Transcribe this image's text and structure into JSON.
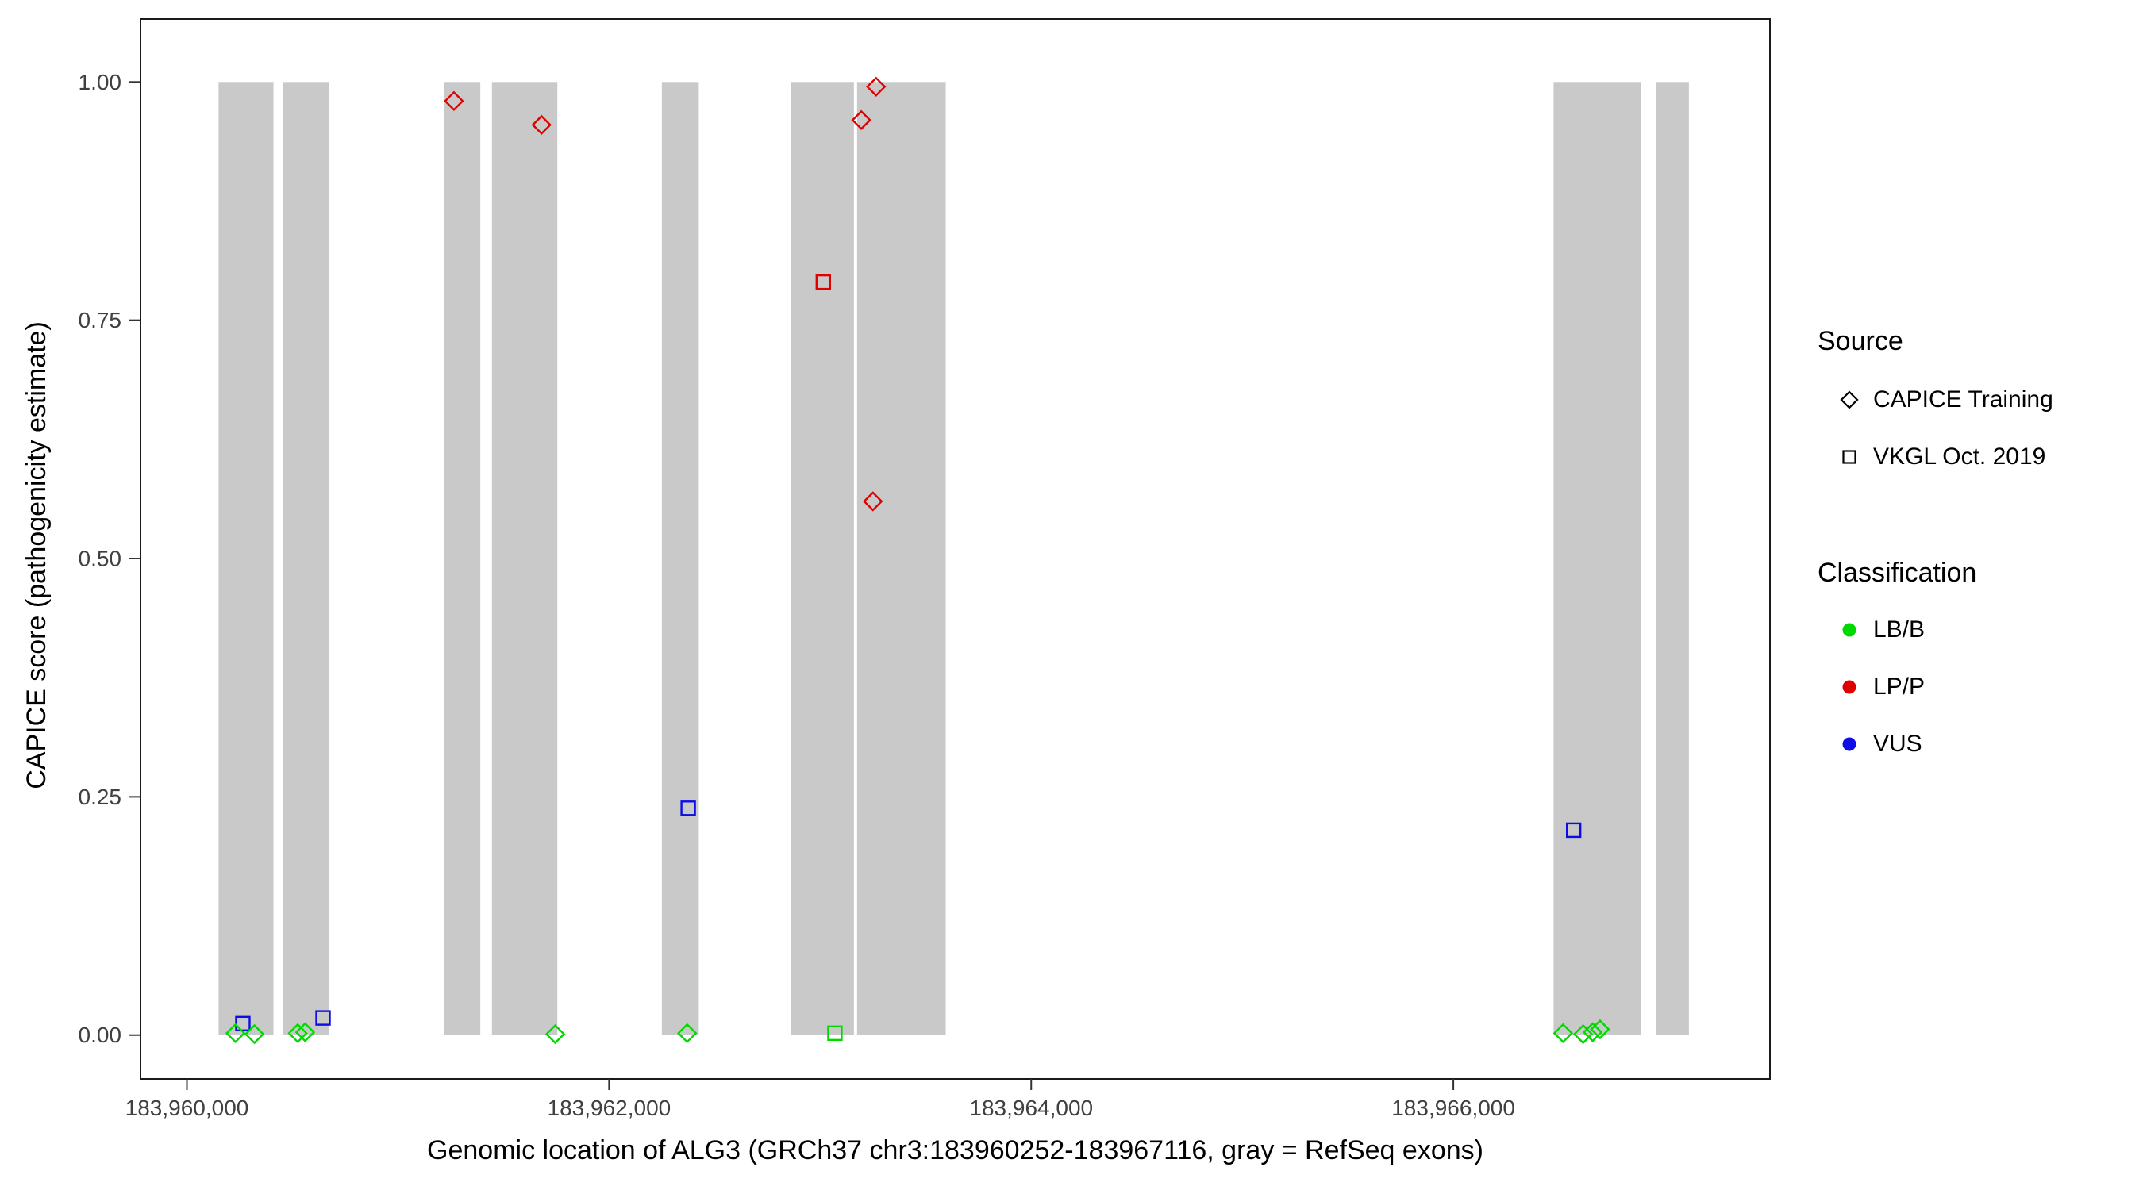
{
  "chart_data": {
    "type": "scatter",
    "title": "",
    "xlabel": "Genomic location of ALG3 (GRCh37 chr3:183960252-183967116, gray = RefSeq exons)",
    "ylabel": "CAPICE score (pathogenicity estimate)",
    "xlim": [
      183959780,
      183967500
    ],
    "ylim": [
      -0.046,
      1.066
    ],
    "grid": "off",
    "legend_position": "right",
    "x_ticks": [
      {
        "value": 183960000,
        "label": "183,960,000"
      },
      {
        "value": 183962000,
        "label": "183,962,000"
      },
      {
        "value": 183964000,
        "label": "183,964,000"
      },
      {
        "value": 183966000,
        "label": "183,966,000"
      }
    ],
    "y_ticks": [
      {
        "value": 0.0,
        "label": "0.00"
      },
      {
        "value": 0.25,
        "label": "0.25"
      },
      {
        "value": 0.5,
        "label": "0.50"
      },
      {
        "value": 0.75,
        "label": "0.75"
      },
      {
        "value": 1.0,
        "label": "1.00"
      }
    ],
    "exon_color": "#C9C9C9",
    "exons": [
      [
        183960150,
        183960410
      ],
      [
        183960455,
        183960675
      ],
      [
        183961220,
        183961390
      ],
      [
        183961445,
        183961755
      ],
      [
        183962250,
        183962425
      ],
      [
        183962860,
        183963160
      ],
      [
        183963175,
        183963595
      ],
      [
        183966475,
        183966890
      ],
      [
        183966960,
        183967116
      ]
    ],
    "color_map": {
      "LB/B": "#00D900",
      "LP/P": "#E00000",
      "VUS": "#0D0DE6"
    },
    "shape_map": {
      "CAPICE Training": "diamond",
      "VKGL Oct. 2019": "square"
    },
    "points": [
      {
        "x": 183961265,
        "y": 0.98,
        "source": "CAPICE Training",
        "classification": "LP/P"
      },
      {
        "x": 183961680,
        "y": 0.955,
        "source": "CAPICE Training",
        "classification": "LP/P"
      },
      {
        "x": 183963265,
        "y": 0.995,
        "source": "CAPICE Training",
        "classification": "LP/P"
      },
      {
        "x": 183963195,
        "y": 0.96,
        "source": "CAPICE Training",
        "classification": "LP/P"
      },
      {
        "x": 183963250,
        "y": 0.56,
        "source": "CAPICE Training",
        "classification": "LP/P"
      },
      {
        "x": 183963015,
        "y": 0.79,
        "source": "VKGL Oct. 2019",
        "classification": "LP/P"
      },
      {
        "x": 183962375,
        "y": 0.238,
        "source": "VKGL Oct. 2019",
        "classification": "VUS"
      },
      {
        "x": 183966570,
        "y": 0.215,
        "source": "VKGL Oct. 2019",
        "classification": "VUS"
      },
      {
        "x": 183960265,
        "y": 0.012,
        "source": "VKGL Oct. 2019",
        "classification": "VUS"
      },
      {
        "x": 183960645,
        "y": 0.018,
        "source": "VKGL Oct. 2019",
        "classification": "VUS"
      },
      {
        "x": 183963070,
        "y": 0.002,
        "source": "VKGL Oct. 2019",
        "classification": "LB/B"
      },
      {
        "x": 183960230,
        "y": 0.002,
        "source": "CAPICE Training",
        "classification": "LB/B"
      },
      {
        "x": 183960320,
        "y": 0.001,
        "source": "CAPICE Training",
        "classification": "LB/B"
      },
      {
        "x": 183960525,
        "y": 0.002,
        "source": "CAPICE Training",
        "classification": "LB/B"
      },
      {
        "x": 183960560,
        "y": 0.003,
        "source": "CAPICE Training",
        "classification": "LB/B"
      },
      {
        "x": 183961745,
        "y": 0.001,
        "source": "CAPICE Training",
        "classification": "LB/B"
      },
      {
        "x": 183962370,
        "y": 0.002,
        "source": "CAPICE Training",
        "classification": "LB/B"
      },
      {
        "x": 183966520,
        "y": 0.002,
        "source": "CAPICE Training",
        "classification": "LB/B"
      },
      {
        "x": 183966615,
        "y": 0.001,
        "source": "CAPICE Training",
        "classification": "LB/B"
      },
      {
        "x": 183966660,
        "y": 0.003,
        "source": "CAPICE Training",
        "classification": "LB/B"
      },
      {
        "x": 183966695,
        "y": 0.006,
        "source": "CAPICE Training",
        "classification": "LB/B"
      }
    ]
  },
  "legend": {
    "source": {
      "title": "Source",
      "items": [
        {
          "label": "CAPICE Training",
          "shape": "diamond"
        },
        {
          "label": "VKGL Oct. 2019",
          "shape": "square"
        }
      ]
    },
    "classification": {
      "title": "Classification",
      "items": [
        {
          "label": "LB/B",
          "color": "#00D900"
        },
        {
          "label": "LP/P",
          "color": "#E00000"
        },
        {
          "label": "VUS",
          "color": "#0D0DE6"
        }
      ]
    }
  }
}
